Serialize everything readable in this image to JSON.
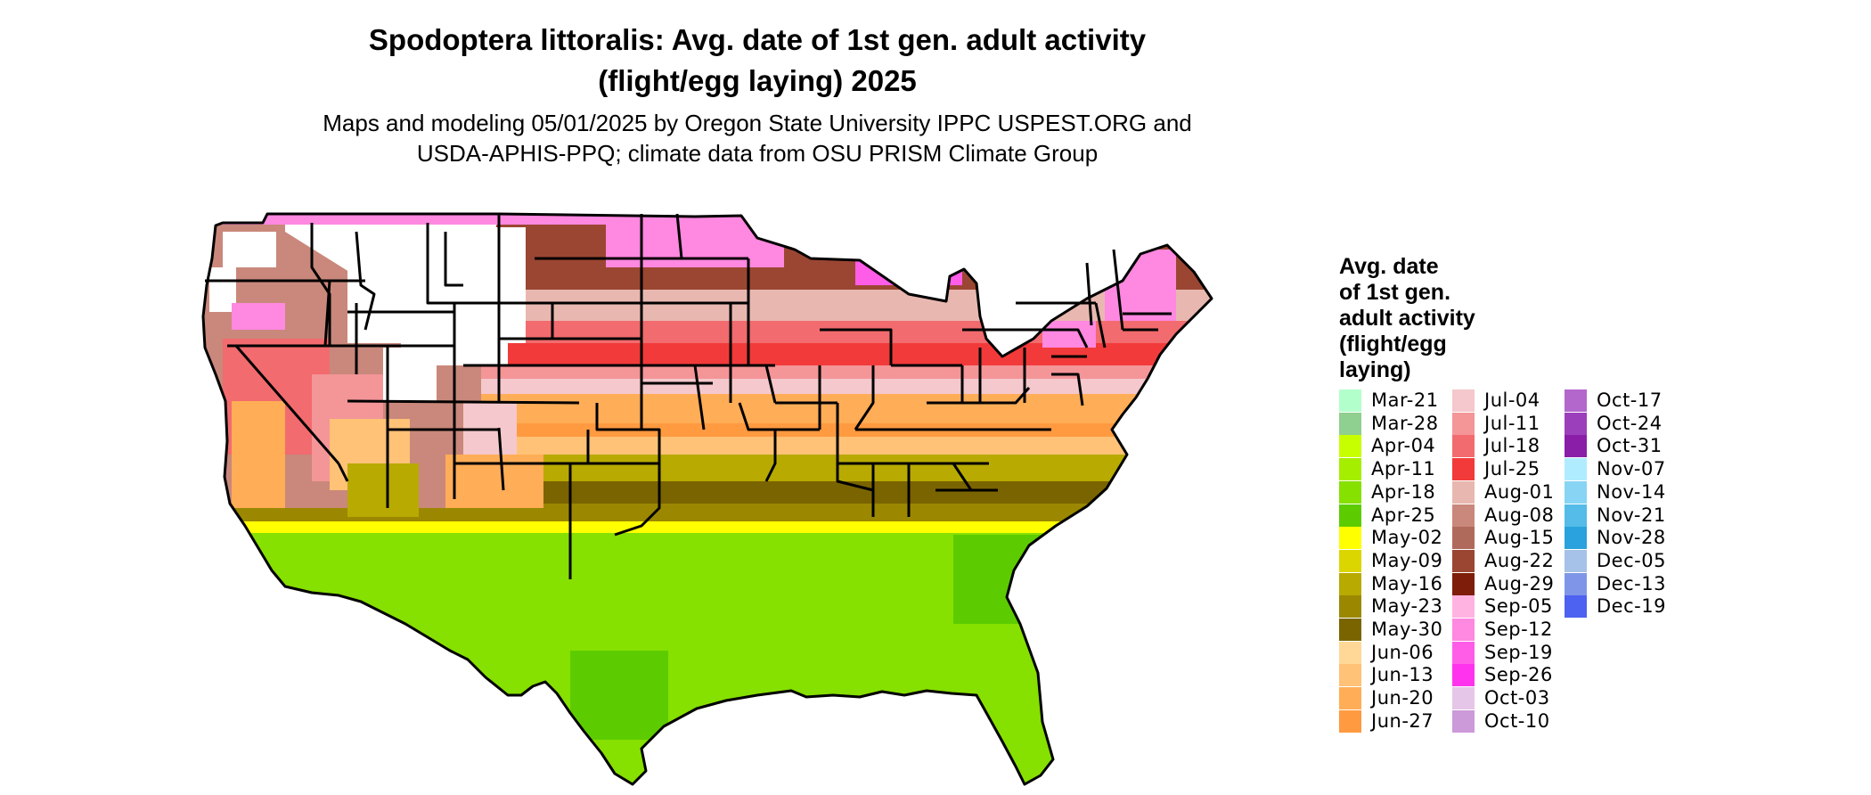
{
  "title_line1": "Spodoptera littoralis: Avg. date of 1st gen. adult activity",
  "title_line2": "(flight/egg laying) 2025",
  "subtitle_line1": "Maps and modeling 05/01/2025 by Oregon State University IPPC USPEST.ORG and",
  "subtitle_line2": "USDA-APHIS-PPQ; climate data from OSU PRISM Climate Group",
  "legend": {
    "title_lines": [
      "Avg. date",
      "of 1st gen.",
      "adult activity",
      "(flight/egg",
      "laying)"
    ],
    "columns": [
      [
        {
          "label": "Mar-21",
          "color": "#b3ffcc"
        },
        {
          "label": "Mar-28",
          "color": "#8fcf8f"
        },
        {
          "label": "Apr-04",
          "color": "#c8ff00"
        },
        {
          "label": "Apr-11",
          "color": "#a6ee00"
        },
        {
          "label": "Apr-18",
          "color": "#86e000"
        },
        {
          "label": "Apr-25",
          "color": "#5ccc00"
        },
        {
          "label": "May-02",
          "color": "#ffff00"
        },
        {
          "label": "May-09",
          "color": "#dcd600"
        },
        {
          "label": "May-16",
          "color": "#b8aa00"
        },
        {
          "label": "May-23",
          "color": "#9b8800"
        },
        {
          "label": "May-30",
          "color": "#7a6400"
        },
        {
          "label": "Jun-06",
          "color": "#ffd898"
        },
        {
          "label": "Jun-13",
          "color": "#ffc277"
        },
        {
          "label": "Jun-20",
          "color": "#ffad57"
        },
        {
          "label": "Jun-27",
          "color": "#ff9a40"
        }
      ],
      [
        {
          "label": "Jul-04",
          "color": "#f4c8cc"
        },
        {
          "label": "Jul-11",
          "color": "#f49598"
        },
        {
          "label": "Jul-18",
          "color": "#f26b6e"
        },
        {
          "label": "Jul-25",
          "color": "#f23a3a"
        },
        {
          "label": "Aug-01",
          "color": "#e8b8b0"
        },
        {
          "label": "Aug-08",
          "color": "#c9887b"
        },
        {
          "label": "Aug-15",
          "color": "#b06a5b"
        },
        {
          "label": "Aug-22",
          "color": "#9b4632"
        },
        {
          "label": "Aug-29",
          "color": "#7e1e0a"
        },
        {
          "label": "Sep-05",
          "color": "#ffb3e0"
        },
        {
          "label": "Sep-12",
          "color": "#ff88e0"
        },
        {
          "label": "Sep-19",
          "color": "#ff5ce8"
        },
        {
          "label": "Sep-26",
          "color": "#ff33ee"
        },
        {
          "label": "Oct-03",
          "color": "#e6c6e8"
        },
        {
          "label": "Oct-10",
          "color": "#cc99d9"
        }
      ],
      [
        {
          "label": "Oct-17",
          "color": "#b366cc"
        },
        {
          "label": "Oct-24",
          "color": "#9c3fbb"
        },
        {
          "label": "Oct-31",
          "color": "#8a1ea8"
        },
        {
          "label": "Nov-07",
          "color": "#b0ecff"
        },
        {
          "label": "Nov-14",
          "color": "#88d4f4"
        },
        {
          "label": "Nov-21",
          "color": "#55bbe8"
        },
        {
          "label": "Nov-28",
          "color": "#2aa2dd"
        },
        {
          "label": "Dec-05",
          "color": "#a6c2e8"
        },
        {
          "label": "Dec-13",
          "color": "#7f96e8"
        },
        {
          "label": "Dec-19",
          "color": "#4d62f0"
        }
      ]
    ]
  }
}
